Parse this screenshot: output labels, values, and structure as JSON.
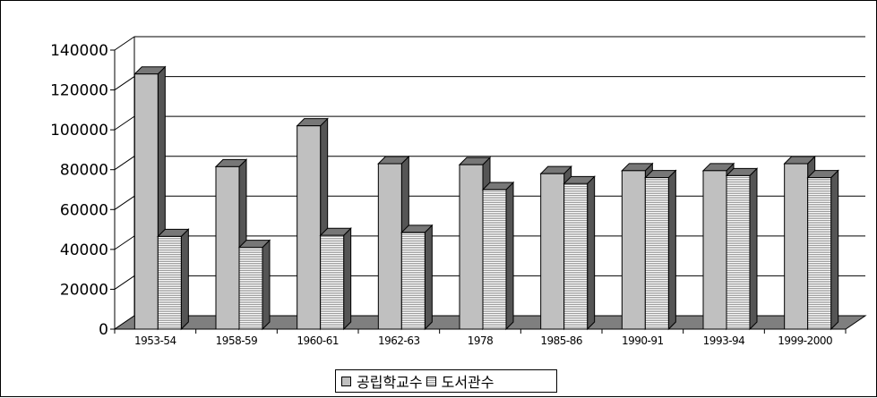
{
  "chart_data": {
    "type": "bar",
    "categories": [
      "1953-54",
      "1958-59",
      "1960-61",
      "1962-63",
      "1978",
      "1985-86",
      "1990-91",
      "1993-94",
      "1999-2000"
    ],
    "series": [
      {
        "name": "공립학교수",
        "values": [
          128000,
          81500,
          102000,
          83000,
          82500,
          78000,
          79500,
          79500,
          83000
        ],
        "color": "#c0c0c0"
      },
      {
        "name": "도서관수",
        "values": [
          46500,
          41000,
          47000,
          48500,
          70000,
          73000,
          76000,
          77000,
          76000
        ],
        "color": "#ffffff"
      }
    ],
    "ylim": [
      0,
      140000
    ],
    "yticks": [
      "0",
      "20000",
      "40000",
      "60000",
      "80000",
      "100000",
      "120000",
      "140000"
    ],
    "grid": true,
    "legend_position": "bottom",
    "floor_color": "#7f7f7f",
    "gridline_color": "#000000"
  }
}
